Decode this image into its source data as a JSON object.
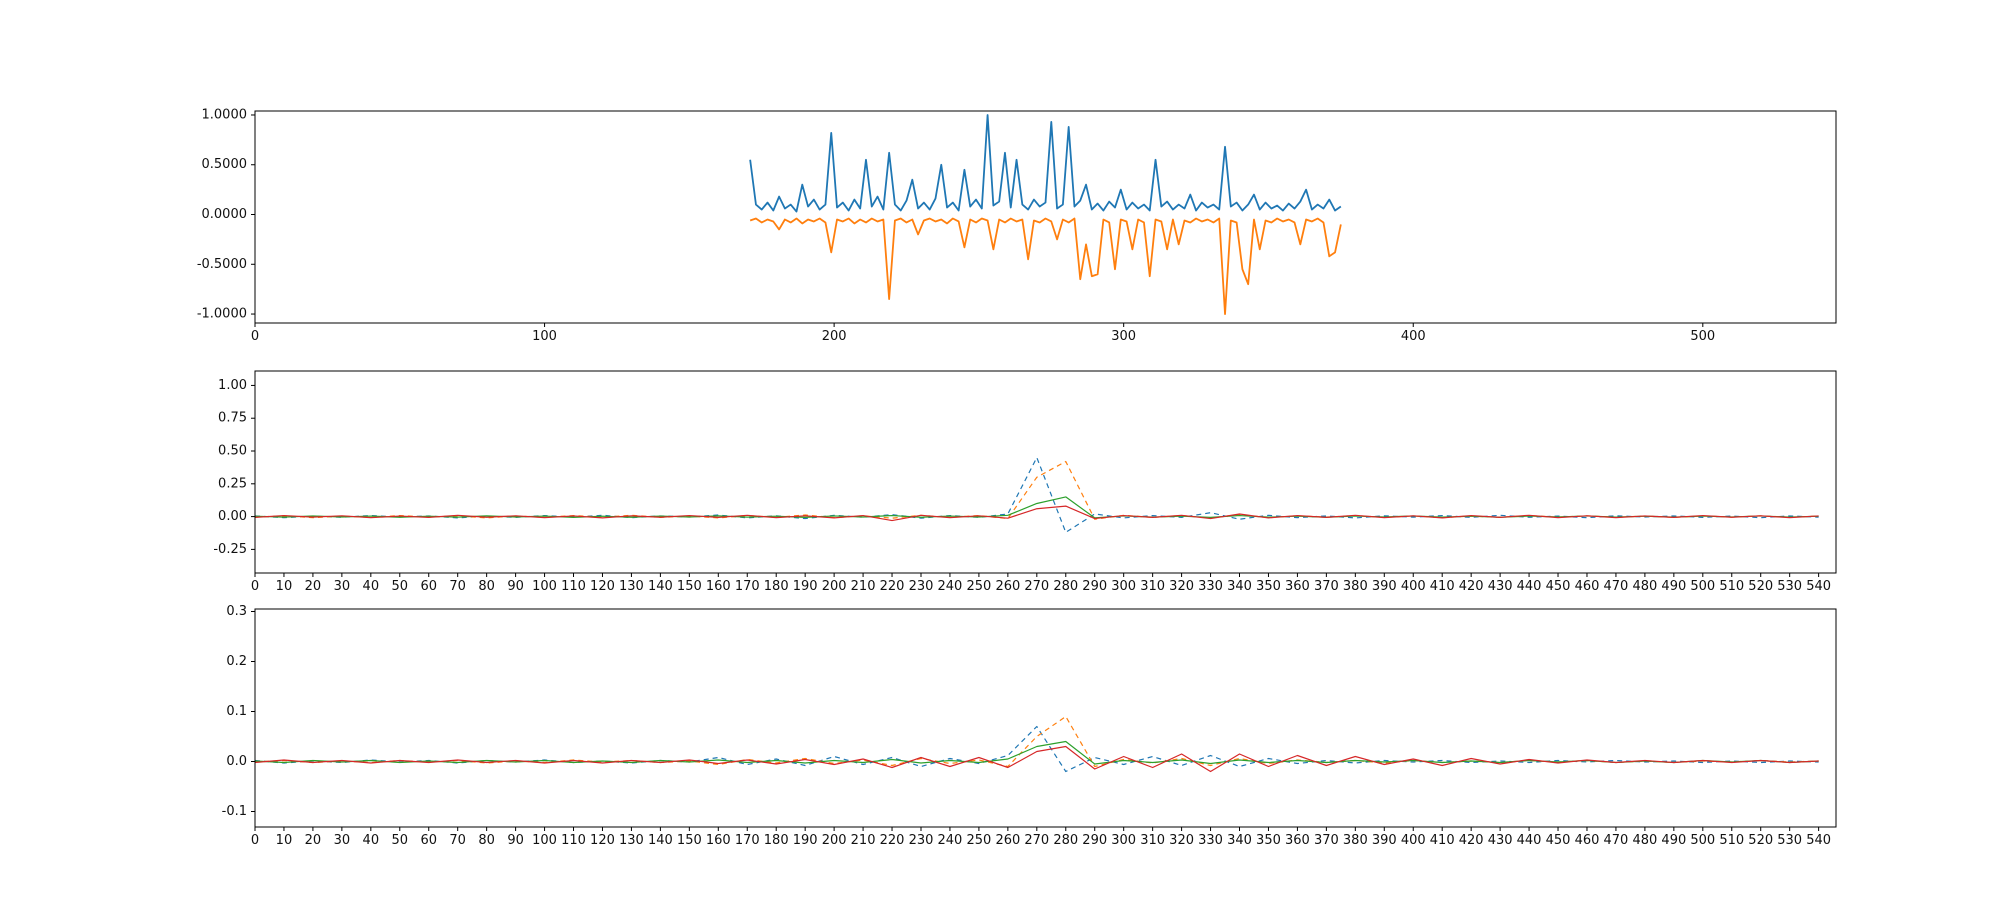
{
  "figure": {
    "background": "#ffffff"
  },
  "chart_data": [
    {
      "id": "top",
      "type": "line",
      "title": "",
      "xlabel": "",
      "ylabel": "",
      "grid": false,
      "legend": null,
      "xlim": [
        0,
        546
      ],
      "ylim": [
        -1.09,
        1.04
      ],
      "xtick_values": [
        0,
        100,
        200,
        300,
        400,
        500
      ],
      "xtick_labels": [
        "0",
        "100",
        "200",
        "300",
        "400",
        "500"
      ],
      "ytick_values": [
        -1.0,
        -0.5,
        0.0,
        0.5,
        1.0
      ],
      "ytick_labels": [
        "-1.0000",
        "-0.5000",
        "0.0000",
        "0.5000",
        "1.0000"
      ],
      "series": [
        {
          "name": "signal-blue",
          "color": "#1f77b4",
          "line_style": "solid",
          "x_start": 171,
          "x_step": 2,
          "values": [
            0.55,
            0.1,
            0.05,
            0.12,
            0.04,
            0.18,
            0.06,
            0.1,
            0.03,
            0.3,
            0.08,
            0.15,
            0.05,
            0.1,
            0.82,
            0.07,
            0.12,
            0.04,
            0.15,
            0.06,
            0.55,
            0.08,
            0.18,
            0.05,
            0.62,
            0.1,
            0.04,
            0.14,
            0.35,
            0.06,
            0.12,
            0.05,
            0.16,
            0.5,
            0.07,
            0.12,
            0.04,
            0.45,
            0.08,
            0.15,
            0.06,
            1.0,
            0.09,
            0.13,
            0.62,
            0.07,
            0.55,
            0.1,
            0.05,
            0.15,
            0.08,
            0.12,
            0.93,
            0.06,
            0.1,
            0.88,
            0.08,
            0.14,
            0.3,
            0.05,
            0.11,
            0.04,
            0.13,
            0.07,
            0.25,
            0.05,
            0.12,
            0.06,
            0.1,
            0.04,
            0.55,
            0.08,
            0.13,
            0.05,
            0.1,
            0.06,
            0.2,
            0.04,
            0.12,
            0.07,
            0.1,
            0.05,
            0.68,
            0.08,
            0.12,
            0.04,
            0.1,
            0.2,
            0.05,
            0.12,
            0.06,
            0.09,
            0.04,
            0.11,
            0.06,
            0.13,
            0.25,
            0.05,
            0.1,
            0.06,
            0.15,
            0.04,
            0.08
          ]
        },
        {
          "name": "signal-orange",
          "color": "#ff7f0e",
          "line_style": "solid",
          "x_start": 171,
          "x_step": 2,
          "values": [
            -0.06,
            -0.04,
            -0.08,
            -0.05,
            -0.07,
            -0.15,
            -0.05,
            -0.08,
            -0.04,
            -0.09,
            -0.05,
            -0.07,
            -0.04,
            -0.08,
            -0.38,
            -0.05,
            -0.07,
            -0.04,
            -0.09,
            -0.05,
            -0.08,
            -0.04,
            -0.07,
            -0.05,
            -0.85,
            -0.06,
            -0.04,
            -0.08,
            -0.05,
            -0.2,
            -0.06,
            -0.04,
            -0.07,
            -0.05,
            -0.09,
            -0.04,
            -0.07,
            -0.33,
            -0.05,
            -0.08,
            -0.04,
            -0.06,
            -0.35,
            -0.05,
            -0.08,
            -0.04,
            -0.07,
            -0.05,
            -0.45,
            -0.06,
            -0.08,
            -0.04,
            -0.07,
            -0.25,
            -0.05,
            -0.08,
            -0.04,
            -0.65,
            -0.3,
            -0.62,
            -0.6,
            -0.05,
            -0.08,
            -0.55,
            -0.05,
            -0.07,
            -0.35,
            -0.05,
            -0.08,
            -0.62,
            -0.05,
            -0.07,
            -0.35,
            -0.05,
            -0.3,
            -0.06,
            -0.08,
            -0.04,
            -0.07,
            -0.05,
            -0.08,
            -0.04,
            -1.0,
            -0.06,
            -0.08,
            -0.55,
            -0.7,
            -0.05,
            -0.35,
            -0.06,
            -0.08,
            -0.04,
            -0.07,
            -0.05,
            -0.08,
            -0.3,
            -0.05,
            -0.07,
            -0.04,
            -0.08,
            -0.42,
            -0.38,
            -0.1
          ]
        }
      ]
    },
    {
      "id": "middle",
      "type": "line",
      "title": "",
      "xlabel": "",
      "ylabel": "",
      "grid": false,
      "legend": null,
      "xlim": [
        0,
        546
      ],
      "ylim": [
        -0.43,
        1.11
      ],
      "xtick_values": [
        0,
        10,
        20,
        30,
        40,
        50,
        60,
        70,
        80,
        90,
        100,
        110,
        120,
        130,
        140,
        150,
        160,
        170,
        180,
        190,
        200,
        210,
        220,
        230,
        240,
        250,
        260,
        270,
        280,
        290,
        300,
        310,
        320,
        330,
        340,
        350,
        360,
        370,
        380,
        390,
        400,
        410,
        420,
        430,
        440,
        450,
        460,
        470,
        480,
        490,
        500,
        510,
        520,
        530,
        540
      ],
      "xtick_labels": [
        "0",
        "10",
        "20",
        "30",
        "40",
        "50",
        "60",
        "70",
        "80",
        "90",
        "100",
        "110",
        "120",
        "130",
        "140",
        "150",
        "160",
        "170",
        "180",
        "190",
        "200",
        "210",
        "220",
        "230",
        "240",
        "250",
        "260",
        "270",
        "280",
        "290",
        "300",
        "310",
        "320",
        "330",
        "340",
        "350",
        "360",
        "370",
        "380",
        "390",
        "400",
        "410",
        "420",
        "430",
        "440",
        "450",
        "460",
        "470",
        "480",
        "490",
        "500",
        "510",
        "520",
        "530",
        "540"
      ],
      "ytick_values": [
        -0.25,
        0.0,
        0.25,
        0.5,
        0.75,
        1.0
      ],
      "ytick_labels": [
        "-0.25",
        "0.00",
        "0.25",
        "0.50",
        "0.75",
        "1.00"
      ],
      "series": [
        {
          "name": "series-blue",
          "color": "#1f77b4",
          "line_style": "dashed",
          "x_start": 0,
          "x_step": 10,
          "values": [
            0.005,
            -0.008,
            0.003,
            -0.005,
            0.008,
            -0.003,
            0.005,
            -0.01,
            0.004,
            -0.006,
            0.008,
            -0.004,
            0.01,
            -0.008,
            0.005,
            -0.003,
            0.012,
            -0.01,
            0.006,
            -0.015,
            0.01,
            -0.005,
            0.015,
            -0.012,
            0.008,
            -0.006,
            0.02,
            0.45,
            -0.12,
            0.02,
            -0.01,
            0.008,
            -0.006,
            0.03,
            -0.02,
            0.01,
            -0.008,
            0.005,
            -0.01,
            0.006,
            -0.004,
            0.008,
            -0.006,
            0.01,
            -0.005,
            0.004,
            -0.008,
            0.006,
            -0.003,
            0.005,
            -0.006,
            0.004,
            -0.008,
            0.005,
            -0.004
          ]
        },
        {
          "name": "series-orange",
          "color": "#ff7f0e",
          "line_style": "dashed",
          "x_start": 0,
          "x_step": 10,
          "values": [
            -0.004,
            0.006,
            -0.008,
            0.004,
            -0.006,
            0.008,
            -0.004,
            0.006,
            -0.01,
            0.005,
            -0.006,
            0.008,
            -0.005,
            0.01,
            -0.006,
            0.004,
            -0.01,
            0.008,
            -0.005,
            0.012,
            -0.008,
            0.006,
            -0.012,
            0.01,
            -0.006,
            0.008,
            -0.015,
            0.3,
            0.42,
            -0.02,
            0.01,
            -0.006,
            0.008,
            -0.01,
            0.015,
            -0.008,
            0.006,
            -0.004,
            0.008,
            -0.006,
            0.005,
            -0.008,
            0.004,
            -0.006,
            0.008,
            -0.004,
            0.006,
            -0.005,
            0.004,
            -0.006,
            0.005,
            -0.004,
            0.006,
            -0.005,
            0.004
          ]
        },
        {
          "name": "series-green",
          "color": "#2ca02c",
          "line_style": "solid",
          "x_start": 0,
          "x_step": 10,
          "values": [
            0.003,
            -0.004,
            0.005,
            -0.003,
            0.004,
            -0.005,
            0.003,
            -0.004,
            0.006,
            -0.003,
            0.004,
            -0.006,
            0.003,
            -0.005,
            0.004,
            -0.003,
            0.006,
            -0.004,
            0.003,
            -0.006,
            0.005,
            -0.003,
            0.008,
            -0.005,
            0.004,
            -0.003,
            0.01,
            0.1,
            0.15,
            -0.01,
            0.005,
            -0.004,
            0.003,
            -0.006,
            0.008,
            -0.004,
            0.003,
            -0.005,
            0.004,
            -0.003,
            0.005,
            -0.004,
            0.003,
            -0.005,
            0.004,
            -0.003,
            0.005,
            -0.004,
            0.003,
            -0.004,
            0.004,
            -0.003,
            0.005,
            -0.004,
            0.003
          ]
        },
        {
          "name": "series-red",
          "color": "#d62728",
          "line_style": "solid",
          "x_start": 0,
          "x_step": 10,
          "values": [
            -0.006,
            0.008,
            -0.004,
            0.006,
            -0.008,
            0.004,
            -0.006,
            0.01,
            -0.005,
            0.006,
            -0.008,
            0.005,
            -0.01,
            0.006,
            -0.005,
            0.008,
            -0.006,
            0.01,
            -0.008,
            0.006,
            -0.01,
            0.008,
            -0.03,
            0.01,
            -0.008,
            0.006,
            -0.012,
            0.06,
            0.08,
            -0.015,
            0.008,
            -0.006,
            0.01,
            -0.015,
            0.02,
            -0.01,
            0.008,
            -0.006,
            0.01,
            -0.008,
            0.006,
            -0.01,
            0.008,
            -0.006,
            0.01,
            -0.008,
            0.006,
            -0.008,
            0.005,
            -0.006,
            0.008,
            -0.005,
            0.006,
            -0.008,
            0.005
          ]
        }
      ]
    },
    {
      "id": "bottom",
      "type": "line",
      "title": "",
      "xlabel": "",
      "ylabel": "",
      "grid": false,
      "legend": null,
      "xlim": [
        0,
        546
      ],
      "ylim": [
        -0.131,
        0.305
      ],
      "xtick_values": [
        0,
        10,
        20,
        30,
        40,
        50,
        60,
        70,
        80,
        90,
        100,
        110,
        120,
        130,
        140,
        150,
        160,
        170,
        180,
        190,
        200,
        210,
        220,
        230,
        240,
        250,
        260,
        270,
        280,
        290,
        300,
        310,
        320,
        330,
        340,
        350,
        360,
        370,
        380,
        390,
        400,
        410,
        420,
        430,
        440,
        450,
        460,
        470,
        480,
        490,
        500,
        510,
        520,
        530,
        540
      ],
      "xtick_labels": [
        "0",
        "10",
        "20",
        "30",
        "40",
        "50",
        "60",
        "70",
        "80",
        "90",
        "100",
        "110",
        "120",
        "130",
        "140",
        "150",
        "160",
        "170",
        "180",
        "190",
        "200",
        "210",
        "220",
        "230",
        "240",
        "250",
        "260",
        "270",
        "280",
        "290",
        "300",
        "310",
        "320",
        "330",
        "340",
        "350",
        "360",
        "370",
        "380",
        "390",
        "400",
        "410",
        "420",
        "430",
        "440",
        "450",
        "460",
        "470",
        "480",
        "490",
        "500",
        "510",
        "520",
        "530",
        "540"
      ],
      "ytick_values": [
        -0.1,
        0.0,
        0.1,
        0.2,
        0.3
      ],
      "ytick_labels": [
        "-0.1",
        "0.0",
        "0.1",
        "0.2",
        "0.3"
      ],
      "series": [
        {
          "name": "series-blue",
          "color": "#1f77b4",
          "line_style": "dashed",
          "x_start": 0,
          "x_step": 10,
          "values": [
            0.002,
            -0.003,
            0.001,
            -0.002,
            0.003,
            -0.001,
            0.002,
            -0.003,
            0.002,
            -0.001,
            0.003,
            -0.002,
            0.001,
            -0.003,
            0.002,
            -0.001,
            0.008,
            -0.006,
            0.005,
            -0.008,
            0.01,
            -0.006,
            0.008,
            -0.01,
            0.006,
            -0.004,
            0.012,
            0.07,
            -0.02,
            0.008,
            -0.006,
            0.01,
            -0.008,
            0.012,
            -0.01,
            0.006,
            -0.004,
            0.002,
            -0.003,
            0.002,
            -0.001,
            0.002,
            -0.002,
            0.001,
            -0.002,
            0.002,
            -0.001,
            0.002,
            -0.001,
            0.001,
            -0.002,
            0.001,
            -0.002,
            0.001,
            -0.001
          ]
        },
        {
          "name": "series-orange",
          "color": "#ff7f0e",
          "line_style": "dashed",
          "x_start": 0,
          "x_step": 10,
          "values": [
            -0.001,
            0.002,
            -0.002,
            0.001,
            -0.002,
            0.002,
            -0.001,
            0.002,
            -0.003,
            0.001,
            -0.002,
            0.003,
            -0.001,
            0.002,
            -0.002,
            0.001,
            -0.006,
            0.004,
            -0.003,
            0.006,
            -0.004,
            0.003,
            -0.008,
            0.006,
            -0.004,
            0.003,
            -0.01,
            0.05,
            0.09,
            -0.01,
            0.004,
            -0.003,
            0.006,
            -0.008,
            0.006,
            -0.004,
            0.003,
            -0.002,
            0.002,
            -0.003,
            0.002,
            -0.002,
            0.001,
            -0.002,
            0.002,
            -0.001,
            0.002,
            -0.002,
            0.001,
            -0.002,
            0.001,
            -0.001,
            0.002,
            -0.001,
            0.001
          ]
        },
        {
          "name": "series-green",
          "color": "#2ca02c",
          "line_style": "solid",
          "x_start": 0,
          "x_step": 10,
          "values": [
            0.001,
            -0.002,
            0.002,
            -0.001,
            0.002,
            -0.002,
            0.001,
            -0.002,
            0.002,
            -0.001,
            0.002,
            -0.002,
            0.001,
            -0.002,
            0.002,
            -0.001,
            0.003,
            -0.002,
            0.002,
            -0.003,
            0.002,
            -0.002,
            0.004,
            -0.003,
            0.002,
            -0.002,
            0.005,
            0.03,
            0.04,
            -0.005,
            0.002,
            -0.002,
            0.003,
            -0.004,
            0.003,
            -0.002,
            0.002,
            -0.002,
            0.002,
            -0.001,
            0.002,
            -0.002,
            0.001,
            -0.002,
            0.002,
            -0.001,
            0.002,
            -0.002,
            0.001,
            -0.002,
            0.002,
            -0.001,
            0.002,
            -0.002,
            0.001
          ]
        },
        {
          "name": "series-red",
          "color": "#d62728",
          "line_style": "solid",
          "x_start": 0,
          "x_step": 10,
          "values": [
            -0.002,
            0.003,
            -0.002,
            0.002,
            -0.003,
            0.002,
            -0.002,
            0.003,
            -0.002,
            0.002,
            -0.003,
            0.002,
            -0.003,
            0.002,
            -0.002,
            0.003,
            -0.004,
            0.003,
            -0.005,
            0.004,
            -0.006,
            0.005,
            -0.012,
            0.008,
            -0.01,
            0.008,
            -0.012,
            0.02,
            0.03,
            -0.015,
            0.01,
            -0.012,
            0.015,
            -0.02,
            0.015,
            -0.01,
            0.012,
            -0.008,
            0.01,
            -0.006,
            0.005,
            -0.008,
            0.006,
            -0.005,
            0.004,
            -0.003,
            0.003,
            -0.002,
            0.002,
            -0.002,
            0.002,
            -0.002,
            0.002,
            -0.002,
            0.001
          ]
        }
      ]
    }
  ]
}
